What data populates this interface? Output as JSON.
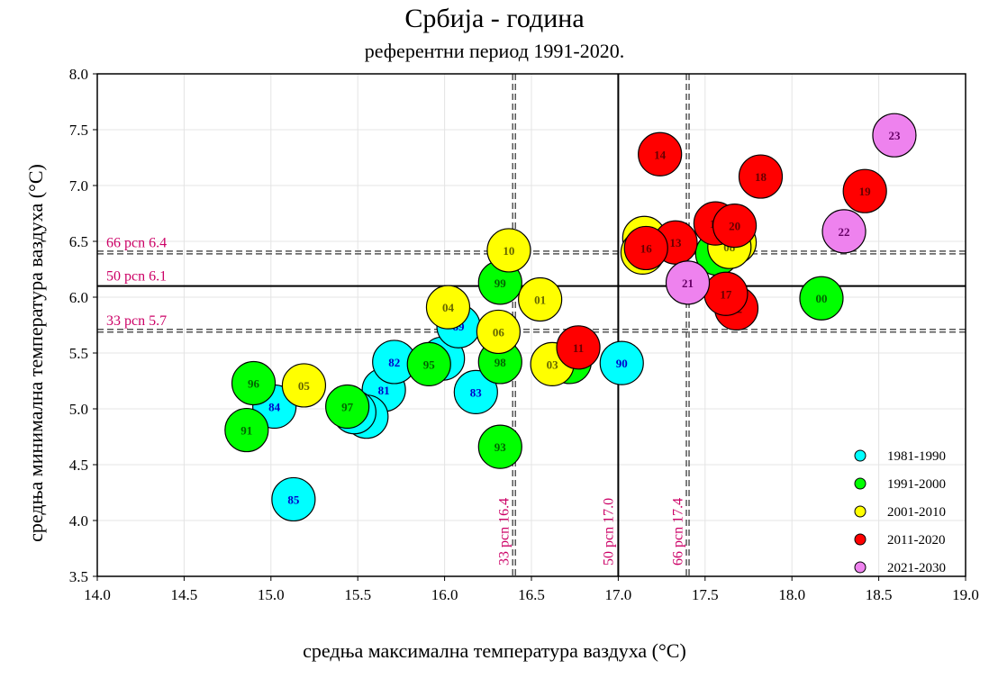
{
  "chart_data": {
    "type": "scatter",
    "title": "Србија - година",
    "subtitle": "референтни период 1991-2020.",
    "xlabel": "средња максимална температура ваздуха (°C)",
    "ylabel": "средња минимална температура ваздуха (°C)",
    "xlim": [
      14.0,
      19.0
    ],
    "ylim": [
      3.5,
      8.0
    ],
    "x_ticks": [
      "14.0",
      "14.5",
      "15.0",
      "15.5",
      "16.0",
      "16.5",
      "17.0",
      "17.5",
      "18.0",
      "18.5",
      "19.0"
    ],
    "y_ticks": [
      "3.5",
      "4.0",
      "4.5",
      "5.0",
      "5.5",
      "6.0",
      "6.5",
      "7.0",
      "7.5",
      "8.0"
    ],
    "grid": true,
    "legend_position": "bottom-right",
    "reference_lines": [
      {
        "axis": "y",
        "value": 6.4,
        "label": "66 pcn 6.4",
        "style": "dashed"
      },
      {
        "axis": "y",
        "value": 6.1,
        "label": "50 pcn 6.1",
        "style": "solid"
      },
      {
        "axis": "y",
        "value": 5.7,
        "label": "33 pcn 5.7",
        "style": "dashed"
      },
      {
        "axis": "x",
        "value": 16.4,
        "label": "33 pcn 16.4",
        "style": "dashed"
      },
      {
        "axis": "x",
        "value": 17.0,
        "label": "50 pcn 17.0",
        "style": "solid"
      },
      {
        "axis": "x",
        "value": 17.4,
        "label": "66 pcn 17.4",
        "style": "dashed"
      }
    ],
    "series": [
      {
        "name": "1981-1990",
        "color": "#00ffff",
        "label_color": "#0000cc",
        "points": [
          {
            "label": "81",
            "x": 15.65,
            "y": 5.17
          },
          {
            "label": "82",
            "x": 15.71,
            "y": 5.42
          },
          {
            "label": "83",
            "x": 16.18,
            "y": 5.15
          },
          {
            "label": "84",
            "x": 15.02,
            "y": 5.02
          },
          {
            "label": "85",
            "x": 15.13,
            "y": 4.19
          },
          {
            "label": "86",
            "x": 15.55,
            "y": 4.93
          },
          {
            "label": "87",
            "x": 15.48,
            "y": 4.97
          },
          {
            "label": "88",
            "x": 15.99,
            "y": 5.45
          },
          {
            "label": "89",
            "x": 16.08,
            "y": 5.74
          },
          {
            "label": "90",
            "x": 17.02,
            "y": 5.41
          }
        ]
      },
      {
        "name": "1991-2000",
        "color": "#00ff00",
        "label_color": "#006600",
        "points": [
          {
            "label": "91",
            "x": 14.86,
            "y": 4.81
          },
          {
            "label": "92",
            "x": 16.72,
            "y": 5.42
          },
          {
            "label": "93",
            "x": 16.32,
            "y": 4.66
          },
          {
            "label": "94",
            "x": 17.57,
            "y": 6.39
          },
          {
            "label": "95",
            "x": 15.91,
            "y": 5.4
          },
          {
            "label": "96",
            "x": 14.9,
            "y": 5.23
          },
          {
            "label": "97",
            "x": 15.44,
            "y": 5.02
          },
          {
            "label": "98",
            "x": 16.32,
            "y": 5.42
          },
          {
            "label": "99",
            "x": 16.32,
            "y": 6.13
          },
          {
            "label": "00",
            "x": 18.17,
            "y": 5.99
          }
        ]
      },
      {
        "name": "2001-2010",
        "color": "#ffff00",
        "label_color": "#666600",
        "points": [
          {
            "label": "01",
            "x": 16.55,
            "y": 5.98
          },
          {
            "label": "02",
            "x": 17.15,
            "y": 6.53
          },
          {
            "label": "03",
            "x": 16.62,
            "y": 5.4
          },
          {
            "label": "04",
            "x": 16.02,
            "y": 5.91
          },
          {
            "label": "05",
            "x": 15.19,
            "y": 5.21
          },
          {
            "label": "06",
            "x": 16.31,
            "y": 5.69
          },
          {
            "label": "07",
            "x": 17.67,
            "y": 6.49
          },
          {
            "label": "08",
            "x": 17.64,
            "y": 6.45
          },
          {
            "label": "09",
            "x": 17.14,
            "y": 6.4
          },
          {
            "label": "10",
            "x": 16.37,
            "y": 6.42
          }
        ]
      },
      {
        "name": "2011-2020",
        "color": "#ff0000",
        "label_color": "#660000",
        "points": [
          {
            "label": "11",
            "x": 16.77,
            "y": 5.55
          },
          {
            "label": "12",
            "x": 17.68,
            "y": 5.9
          },
          {
            "label": "13",
            "x": 17.33,
            "y": 6.49
          },
          {
            "label": "14",
            "x": 17.24,
            "y": 7.28
          },
          {
            "label": "15",
            "x": 17.56,
            "y": 6.66
          },
          {
            "label": "16",
            "x": 17.16,
            "y": 6.44
          },
          {
            "label": "17",
            "x": 17.62,
            "y": 6.03
          },
          {
            "label": "18",
            "x": 17.82,
            "y": 7.08
          },
          {
            "label": "19",
            "x": 18.42,
            "y": 6.95
          },
          {
            "label": "20",
            "x": 17.67,
            "y": 6.64
          }
        ]
      },
      {
        "name": "2021-2030",
        "color": "#ee82ee",
        "label_color": "#660066",
        "points": [
          {
            "label": "21",
            "x": 17.4,
            "y": 6.13
          },
          {
            "label": "22",
            "x": 18.3,
            "y": 6.59
          },
          {
            "label": "23",
            "x": 18.59,
            "y": 7.45
          }
        ]
      }
    ]
  }
}
